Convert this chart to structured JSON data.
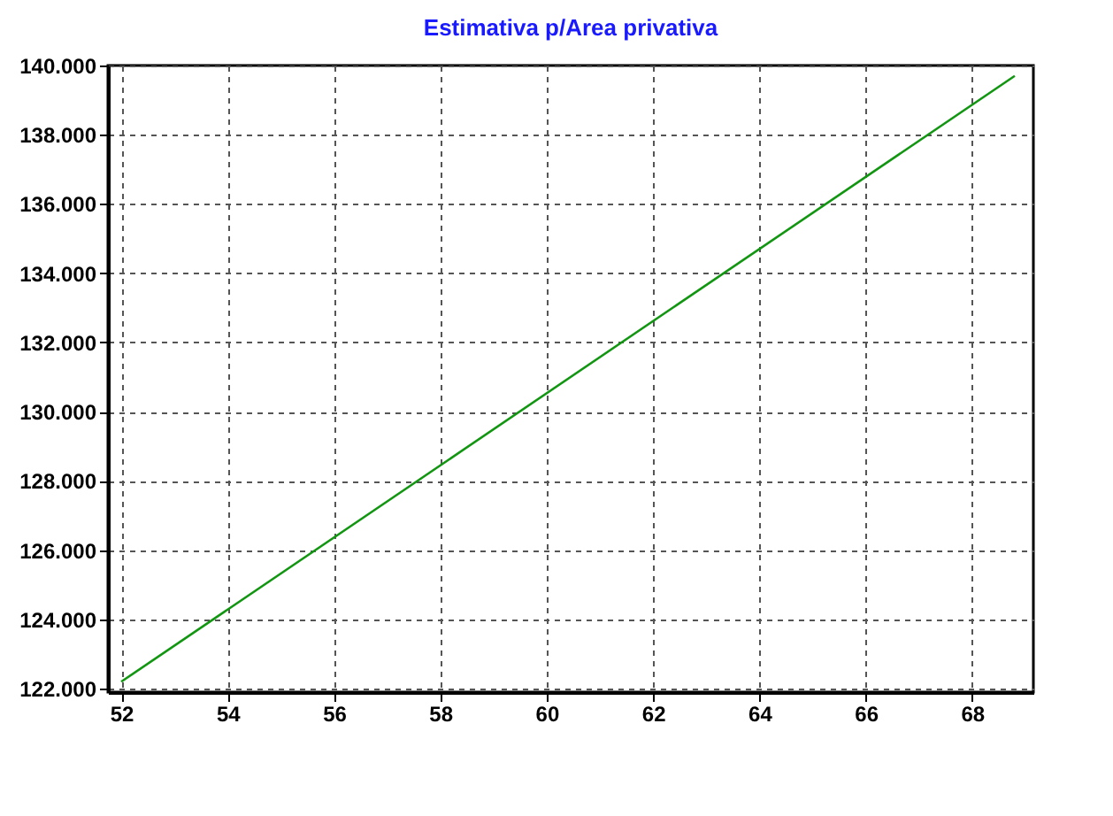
{
  "chart_data": {
    "type": "line",
    "title": "Estimativa p/Area privativa",
    "x": [
      52,
      68.8
    ],
    "series": [
      {
        "color": "#129612",
        "values": [
          122200,
          139700
        ]
      }
    ],
    "xlim": [
      51.75,
      69.15
    ],
    "xticks": [
      52,
      54,
      56,
      58,
      60,
      62,
      64,
      66,
      68
    ],
    "ylim": [
      121900,
      140000
    ],
    "yticks": [
      {
        "value": 122000,
        "label": "122.000"
      },
      {
        "value": 124000,
        "label": "124.000"
      },
      {
        "value": 126000,
        "label": "126.000"
      },
      {
        "value": 128000,
        "label": "128.000"
      },
      {
        "value": 130000,
        "label": "130.000"
      },
      {
        "value": 132000,
        "label": "132.000"
      },
      {
        "value": 134000,
        "label": "134.000"
      },
      {
        "value": 136000,
        "label": "136.000"
      },
      {
        "value": 138000,
        "label": "138.000"
      },
      {
        "value": 140000,
        "label": "140.000"
      }
    ],
    "grid": true,
    "line_style": "solid",
    "marker": "none"
  }
}
